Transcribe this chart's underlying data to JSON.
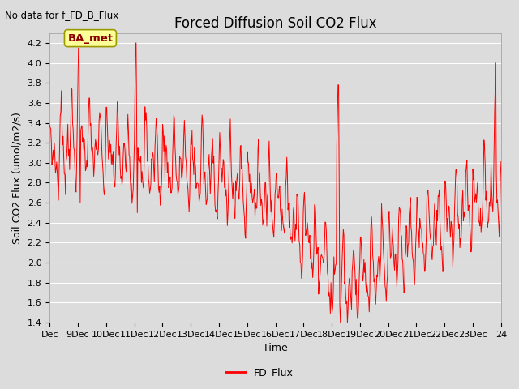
{
  "title": "Forced Diffusion Soil CO2 Flux",
  "top_left_text": "No data for f_FD_B_Flux",
  "xlabel": "Time",
  "ylabel": "Soil CO2 Flux (umol/m2/s)",
  "legend_label": "FD_Flux",
  "annotation_box": "BA_met",
  "ylim": [
    1.4,
    4.3
  ],
  "yticks": [
    1.4,
    1.6,
    1.8,
    2.0,
    2.2,
    2.4,
    2.6,
    2.8,
    3.0,
    3.2,
    3.4,
    3.6,
    3.8,
    4.0,
    4.2
  ],
  "x_tick_labels": [
    "Dec",
    "9Dec",
    "10Dec",
    "11Dec",
    "12Dec",
    "13Dec",
    "14Dec",
    "15Dec",
    "16Dec",
    "17Dec",
    "18Dec",
    "19Dec",
    "20Dec",
    "21Dec",
    "22Dec",
    "23Dec",
    "24"
  ],
  "line_color": "#FF0000",
  "background_color": "#DCDCDC",
  "grid_color": "#FFFFFF",
  "title_fontsize": 12,
  "label_fontsize": 9,
  "tick_fontsize": 8,
  "annot_facecolor": "#FFFF99",
  "annot_edgecolor": "#999900",
  "annot_textcolor": "#8B0000",
  "n_days": 16,
  "pts_per_day": 48
}
